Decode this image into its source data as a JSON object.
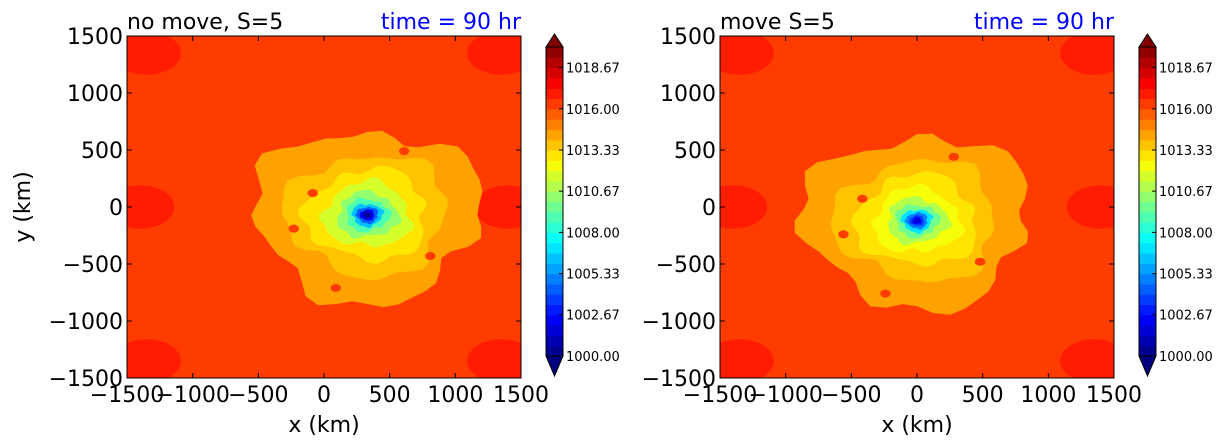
{
  "chart_data": [
    {
      "type": "heatmap",
      "title_left": "no move, S=5",
      "title_right": "time = 90 hr",
      "xlabel": "x (km)",
      "ylabel": "y (km)",
      "xlim": [
        -1500,
        1500
      ],
      "ylim": [
        -1500,
        1500
      ],
      "x_ticks": [
        -1500,
        -1000,
        -500,
        0,
        500,
        1000,
        1500
      ],
      "y_ticks": [
        -1500,
        -1000,
        -500,
        0,
        500,
        1000,
        1500
      ],
      "x_tick_labels": [
        "−1500",
        "−1000",
        "−500",
        "0",
        "500",
        "1000",
        "1500"
      ],
      "y_tick_labels": [
        "−1500",
        "−1000",
        "−500",
        "0",
        "500",
        "1000",
        "1500"
      ],
      "colorbar": {
        "min": 1000.0,
        "max": 1020.0,
        "extend": "both",
        "levels": 30,
        "tick_values": [
          1000.0,
          1002.67,
          1005.33,
          1008.0,
          1010.67,
          1013.33,
          1016.0,
          1018.67
        ],
        "tick_labels": [
          "1000.00",
          "1002.67",
          "1005.33",
          "1008.00",
          "1010.67",
          "1013.33",
          "1016.00",
          "1018.67"
        ],
        "colormap": "jet"
      },
      "field": {
        "background": 1016.3,
        "center_x": 330,
        "center_y": -70,
        "min_value": 1000.5,
        "regions": [
          {
            "label": "outer-corner-high",
            "value": 1017.2
          },
          {
            "label": "inner-ring",
            "value": 1014.5
          },
          {
            "label": "core",
            "value": 1011.5
          }
        ]
      }
    },
    {
      "type": "heatmap",
      "title_left": "move S=5",
      "title_right": "time = 90 hr",
      "xlabel": "x (km)",
      "ylabel": "",
      "xlim": [
        -1500,
        1500
      ],
      "ylim": [
        -1500,
        1500
      ],
      "x_ticks": [
        -1500,
        -1000,
        -500,
        0,
        500,
        1000,
        1500
      ],
      "y_ticks": [
        -1500,
        -1000,
        -500,
        0,
        500,
        1000,
        1500
      ],
      "x_tick_labels": [
        "−1500",
        "−1000",
        "−500",
        "0",
        "500",
        "1000",
        "1500"
      ],
      "y_tick_labels": [
        "−1500",
        "−1000",
        "−500",
        "0",
        "500",
        "1000",
        "1500"
      ],
      "colorbar": {
        "min": 1000.0,
        "max": 1020.0,
        "extend": "both",
        "levels": 30,
        "tick_values": [
          1000.0,
          1002.67,
          1005.33,
          1008.0,
          1010.67,
          1013.33,
          1016.0,
          1018.67
        ],
        "tick_labels": [
          "1000.00",
          "1002.67",
          "1005.33",
          "1008.00",
          "1010.67",
          "1013.33",
          "1016.00",
          "1018.67"
        ],
        "colormap": "jet"
      },
      "field": {
        "background": 1016.3,
        "center_x": 0,
        "center_y": -120,
        "min_value": 1001.5,
        "regions": [
          {
            "label": "outer-corner-high",
            "value": 1017.2
          },
          {
            "label": "inner-ring",
            "value": 1014.5
          },
          {
            "label": "core",
            "value": 1012.0
          }
        ]
      }
    }
  ],
  "colors": {
    "title_right": "#0000ff",
    "text": "#000000",
    "frame": "#000000"
  }
}
